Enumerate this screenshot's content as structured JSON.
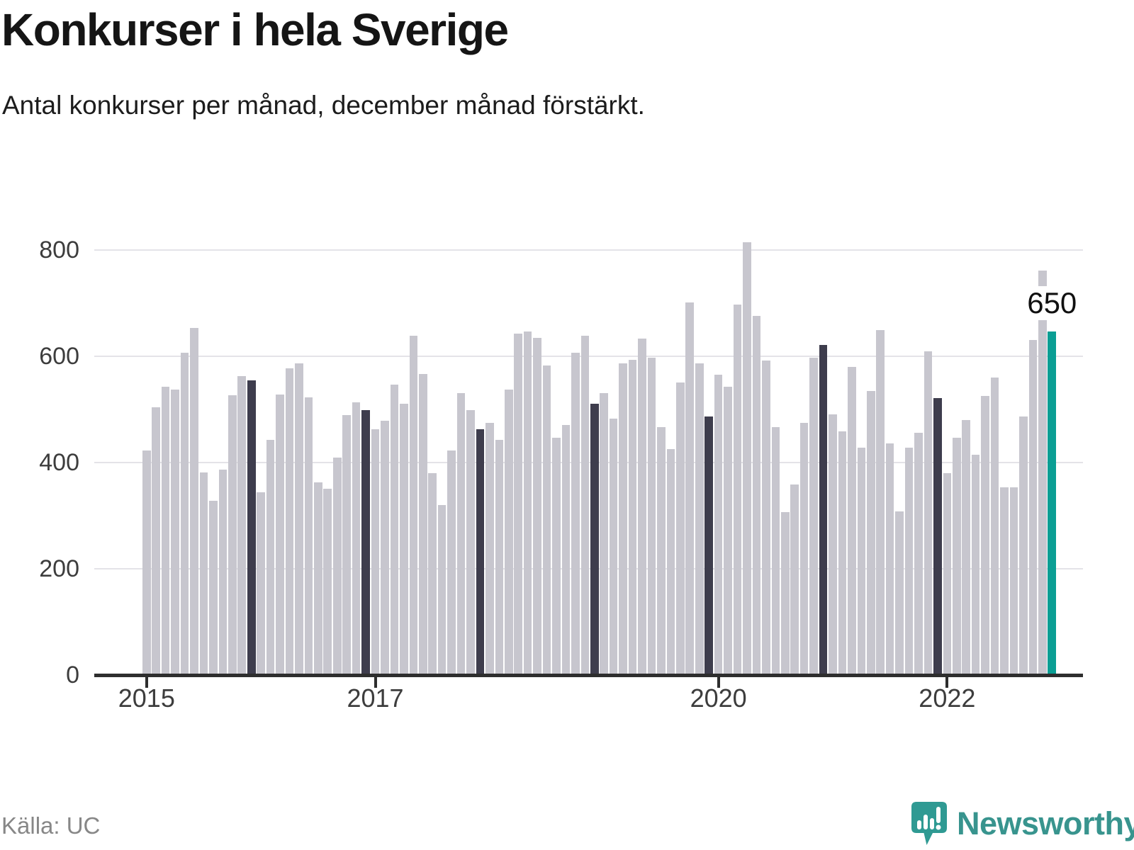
{
  "chart_data": {
    "type": "bar",
    "title": "Konkurser i hela Sverige",
    "subtitle": "Antal konkurser per månad, december månad förstärkt.",
    "source": "Källa: UC",
    "y_axis": {
      "min": 0,
      "max": 800,
      "ticks": [
        0,
        200,
        400,
        600,
        800
      ],
      "grid": true
    },
    "x_axis": {
      "ticks": [
        {
          "label": "2015",
          "month_index": 0
        },
        {
          "label": "2017",
          "month_index": 24
        },
        {
          "label": "2020",
          "month_index": 60
        },
        {
          "label": "2022",
          "month_index": 84
        }
      ]
    },
    "legend": "none",
    "series": [
      {
        "year": 2015,
        "values": [
          425,
          507,
          546,
          540,
          609,
          656,
          384,
          331,
          389,
          529,
          565,
          558
        ]
      },
      {
        "year": 2016,
        "values": [
          347,
          445,
          531,
          580,
          589,
          526,
          366,
          353,
          412,
          492,
          516,
          502
        ]
      },
      {
        "year": 2017,
        "values": [
          466,
          482,
          549,
          514,
          642,
          569,
          383,
          323,
          426,
          533,
          501,
          465
        ]
      },
      {
        "year": 2018,
        "values": [
          478,
          446,
          540,
          646,
          650,
          637,
          585,
          449,
          473,
          610,
          641,
          513
        ]
      },
      {
        "year": 2019,
        "values": [
          534,
          485,
          589,
          596,
          636,
          600,
          470,
          428,
          554,
          704,
          589,
          490
        ]
      },
      {
        "year": 2020,
        "values": [
          568,
          545,
          700,
          817,
          679,
          595,
          470,
          310,
          361,
          477,
          600,
          624
        ]
      },
      {
        "year": 2021,
        "values": [
          493,
          461,
          583,
          431,
          538,
          652,
          439,
          311,
          431,
          459,
          612,
          524
        ]
      },
      {
        "year": 2022,
        "values": [
          383,
          449,
          483,
          418,
          528,
          563,
          356,
          356,
          490,
          633,
          764,
          650
        ]
      }
    ],
    "annotation": {
      "text": "650",
      "month_index": 95
    },
    "colors": {
      "bar": "#c7c6ce",
      "december": "#3e3d4d",
      "current": "#0a9e94",
      "grid": "#e4e3e8",
      "axis": "#2e2e2e"
    }
  },
  "footer": {
    "source": "Källa: UC",
    "logo_text": "Newsworthy",
    "logo_color": "#38948e"
  }
}
